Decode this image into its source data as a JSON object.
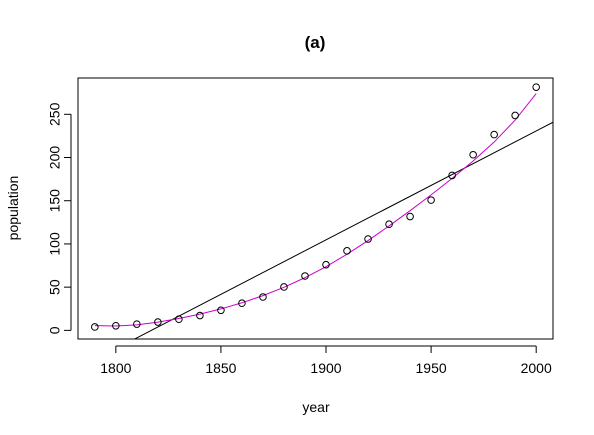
{
  "chart_data": {
    "type": "scatter",
    "title": "(a)",
    "xlabel": "year",
    "ylabel": "population",
    "xlim": [
      1782,
      2008
    ],
    "ylim": [
      -10,
      292
    ],
    "xticks": [
      1800,
      1850,
      1900,
      1950,
      2000
    ],
    "yticks": [
      0,
      50,
      100,
      150,
      200,
      250
    ],
    "grid": false,
    "legend": "none",
    "series": [
      {
        "kind": "points",
        "marker": "open-circle",
        "color": "#000000",
        "x": [
          1790,
          1800,
          1810,
          1820,
          1830,
          1840,
          1850,
          1860,
          1870,
          1880,
          1890,
          1900,
          1910,
          1920,
          1930,
          1940,
          1950,
          1960,
          1970,
          1980,
          1990,
          2000
        ],
        "y": [
          3.9,
          5.3,
          7.2,
          9.6,
          12.9,
          17.1,
          23.2,
          31.4,
          38.6,
          50.2,
          62.9,
          76.0,
          92.0,
          105.7,
          122.8,
          131.7,
          150.7,
          179.3,
          203.2,
          226.5,
          248.7,
          281.4
        ]
      },
      {
        "kind": "line",
        "fit": "linear",
        "color": "#000000",
        "x": [
          1782,
          2008
        ],
        "y": [
          -44.0,
          240.8
        ]
      },
      {
        "kind": "smooth",
        "fit": "polynomial",
        "color": "#cc00cc",
        "x": [
          1790,
          1800,
          1810,
          1820,
          1830,
          1840,
          1850,
          1860,
          1870,
          1880,
          1890,
          1900,
          1910,
          1920,
          1930,
          1940,
          1950,
          1960,
          1970,
          1980,
          1990,
          2000
        ],
        "y": [
          5.5,
          5.0,
          6.4,
          9.5,
          13.7,
          18.8,
          24.8,
          31.9,
          40.2,
          49.8,
          61.0,
          73.7,
          88.1,
          103.9,
          120.8,
          138.5,
          156.8,
          175.8,
          196.0,
          217.9,
          243.3,
          274.0
        ]
      }
    ]
  }
}
